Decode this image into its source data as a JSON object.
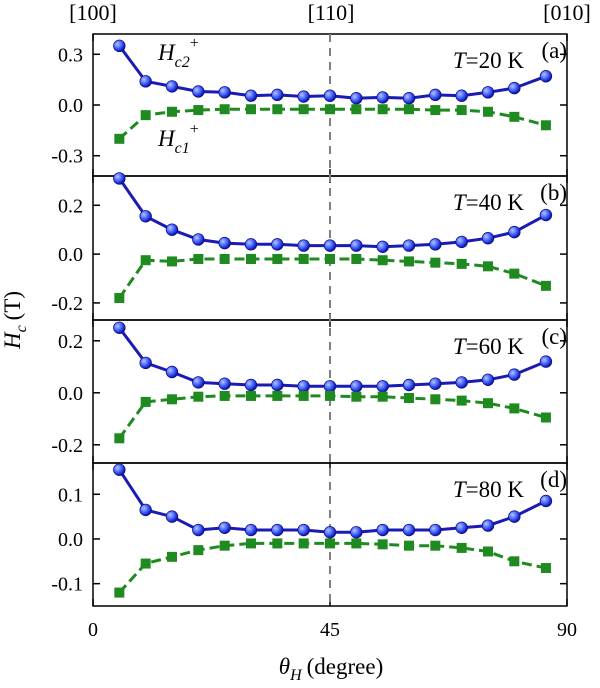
{
  "colors": {
    "hc2": "#1a1ab4",
    "hc1": "#1f8a1f",
    "frame": "#000000",
    "divider": "#808080",
    "marker_blue": "#3a5bff"
  },
  "chart_data": {
    "type": "line",
    "x_label_symbol": "θ",
    "x_label_subscript": "H",
    "x_label_unit": "(degree)",
    "y_label_symbol": "H",
    "y_label_subscript": "c",
    "y_label_unit": "(T)",
    "top_labels": [
      "[100]",
      "[110]",
      "[010]"
    ],
    "top_label_x": [
      0,
      45,
      90
    ],
    "xlim": [
      0,
      90
    ],
    "xticks": [
      0,
      45,
      90
    ],
    "xtick_labels": [
      "0",
      "45",
      "90"
    ],
    "divider_x": 45,
    "legend": {
      "hc2_symbol": "H",
      "hc2_subscript": "c2",
      "hc2_superscript": "+",
      "hc1_symbol": "H",
      "hc1_subscript": "c1",
      "hc1_superscript": "+"
    },
    "x": [
      5,
      10,
      15,
      20,
      25,
      30,
      35,
      40,
      45,
      50,
      55,
      60,
      65,
      70,
      75,
      80,
      86
    ],
    "panels": [
      {
        "label": "(a)",
        "temp_symbol": "T",
        "temp_value": "=20 K",
        "ylim": [
          -0.42,
          0.42
        ],
        "yticks": [
          0.3,
          0.0,
          -0.3
        ],
        "ytick_labels": [
          "0.3",
          "0.0",
          "-0.3"
        ],
        "series": [
          {
            "name": "Hc2+",
            "values": [
              0.35,
              0.14,
              0.11,
              0.08,
              0.075,
              0.055,
              0.06,
              0.05,
              0.055,
              0.04,
              0.045,
              0.04,
              0.06,
              0.055,
              0.075,
              0.1,
              0.17
            ]
          },
          {
            "name": "Hc1+",
            "values": [
              -0.2,
              -0.06,
              -0.04,
              -0.03,
              -0.025,
              -0.025,
              -0.025,
              -0.025,
              -0.025,
              -0.025,
              -0.025,
              -0.025,
              -0.03,
              -0.03,
              -0.04,
              -0.07,
              -0.12
            ]
          }
        ]
      },
      {
        "label": "(b)",
        "temp_symbol": "T",
        "temp_value": "=40 K",
        "ylim": [
          -0.27,
          0.32
        ],
        "yticks": [
          0.2,
          0.0,
          -0.2
        ],
        "ytick_labels": [
          "0.2",
          "0.0",
          "-0.2"
        ],
        "series": [
          {
            "name": "Hc2+",
            "values": [
              0.31,
              0.155,
              0.1,
              0.06,
              0.045,
              0.04,
              0.04,
              0.035,
              0.035,
              0.035,
              0.03,
              0.035,
              0.04,
              0.05,
              0.065,
              0.09,
              0.16
            ]
          },
          {
            "name": "Hc1+",
            "values": [
              -0.18,
              -0.025,
              -0.03,
              -0.02,
              -0.02,
              -0.02,
              -0.02,
              -0.02,
              -0.02,
              -0.02,
              -0.025,
              -0.03,
              -0.035,
              -0.04,
              -0.05,
              -0.08,
              -0.13
            ]
          }
        ]
      },
      {
        "label": "(c)",
        "temp_symbol": "T",
        "temp_value": "=60 K",
        "ylim": [
          -0.27,
          0.28
        ],
        "yticks": [
          0.2,
          0.0,
          -0.2
        ],
        "ytick_labels": [
          "0.2",
          "0.0",
          "-0.2"
        ],
        "series": [
          {
            "name": "Hc2+",
            "values": [
              0.25,
              0.115,
              0.08,
              0.04,
              0.035,
              0.03,
              0.03,
              0.025,
              0.025,
              0.025,
              0.025,
              0.03,
              0.035,
              0.04,
              0.05,
              0.07,
              0.12
            ]
          },
          {
            "name": "Hc1+",
            "values": [
              -0.175,
              -0.035,
              -0.025,
              -0.015,
              -0.012,
              -0.012,
              -0.012,
              -0.012,
              -0.012,
              -0.015,
              -0.015,
              -0.02,
              -0.025,
              -0.03,
              -0.04,
              -0.06,
              -0.095
            ]
          }
        ]
      },
      {
        "label": "(d)",
        "temp_symbol": "T",
        "temp_value": "=80 K",
        "ylim": [
          -0.15,
          0.17
        ],
        "yticks": [
          0.1,
          0.0,
          -0.1
        ],
        "ytick_labels": [
          "0.1",
          "0.0",
          "-0.1"
        ],
        "series": [
          {
            "name": "Hc2+",
            "values": [
              0.155,
              0.065,
              0.05,
              0.02,
              0.025,
              0.02,
              0.02,
              0.02,
              0.015,
              0.015,
              0.02,
              0.02,
              0.02,
              0.025,
              0.03,
              0.05,
              0.085
            ]
          },
          {
            "name": "Hc1+",
            "values": [
              -0.12,
              -0.055,
              -0.04,
              -0.025,
              -0.015,
              -0.01,
              -0.01,
              -0.01,
              -0.01,
              -0.01,
              -0.012,
              -0.015,
              -0.015,
              -0.02,
              -0.028,
              -0.05,
              -0.065
            ]
          }
        ]
      }
    ]
  }
}
